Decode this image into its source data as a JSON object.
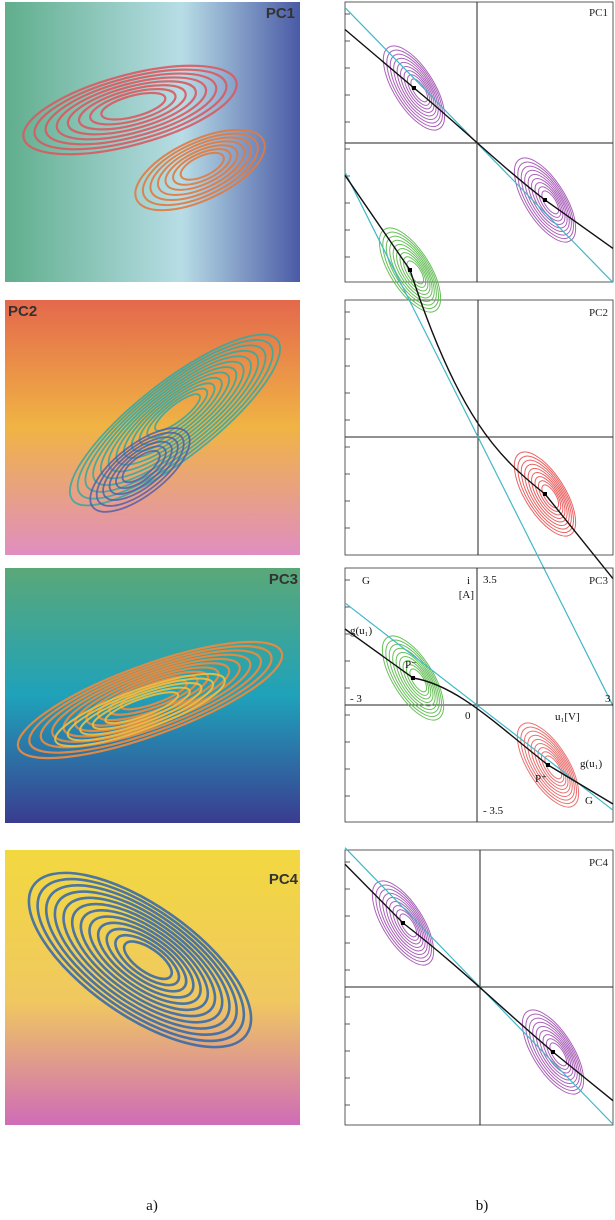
{
  "figure": {
    "left_panels": [
      {
        "label": "PC1"
      },
      {
        "label": "PC2"
      },
      {
        "label": "PC3"
      },
      {
        "label": "PC4"
      }
    ],
    "right_panels": [
      {
        "label": "PC1"
      },
      {
        "label": "PC2"
      },
      {
        "label": "PC3"
      },
      {
        "label": "PC4"
      }
    ],
    "pc3_annotations": {
      "i": "i",
      "unit_i": "[A]",
      "y_max": "3.5",
      "y_min": "- 3.5",
      "x_min": "- 3",
      "x_max": "3",
      "origin": "0",
      "x_axis": "u₁[V]",
      "g_left": "g(u₁)",
      "g_right": "g(u₁)",
      "G_left": "G",
      "G_right": "G",
      "p_minus": "P⁻",
      "p_plus": "P⁺"
    },
    "captions": [
      "a)",
      "b)"
    ]
  }
}
